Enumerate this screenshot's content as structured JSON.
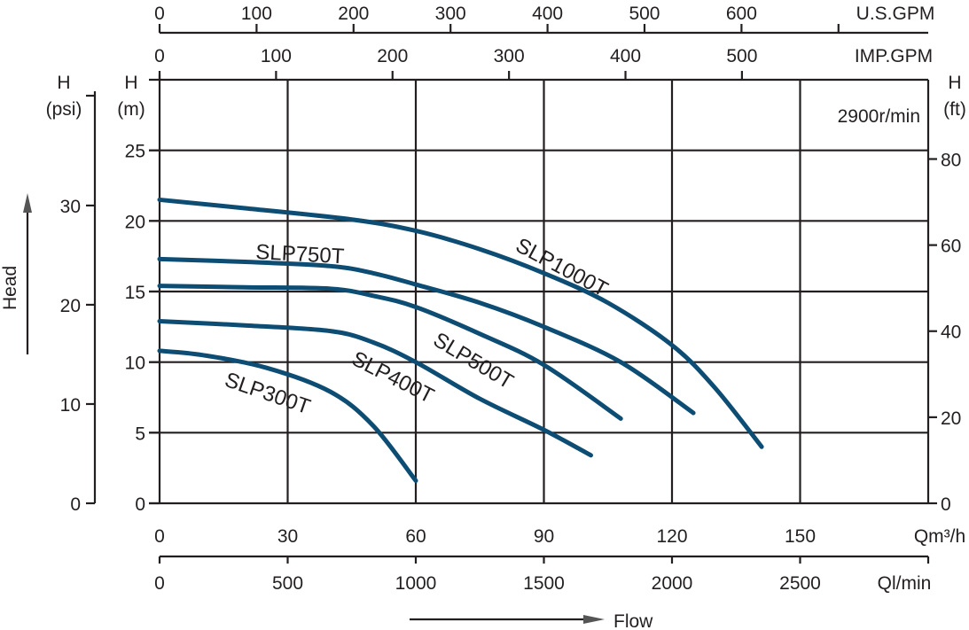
{
  "chart_data": {
    "type": "line",
    "title": "",
    "speed_note": "2900r/min",
    "x_axis": {
      "label": "Qm³/h",
      "range": [
        0,
        180
      ],
      "ticks": [
        0,
        30,
        60,
        90,
        120,
        150
      ]
    },
    "x_axis_lmin": {
      "label": "Ql/min",
      "ticks": [
        0,
        500,
        1000,
        1500,
        2000,
        2500,
        3000
      ],
      "labeled": [
        0,
        500,
        1000,
        1500,
        2000,
        2500
      ]
    },
    "x_axis_usgpm": {
      "label": "U.S.GPM",
      "ticks": [
        0,
        100,
        200,
        300,
        400,
        500,
        600,
        700
      ],
      "labeled": [
        0,
        100,
        200,
        300,
        400,
        500,
        600
      ]
    },
    "x_axis_impgpm": {
      "label": "IMP.GPM",
      "ticks": [
        0,
        100,
        200,
        300,
        400,
        500
      ],
      "labeled": [
        0,
        100,
        200,
        300,
        400,
        500
      ]
    },
    "y_axis_m": {
      "label_top": "H",
      "label_unit": "(m)",
      "range": [
        0,
        30
      ],
      "ticks": [
        0,
        5,
        10,
        15,
        20,
        25
      ]
    },
    "y_axis_psi": {
      "label_top": "H",
      "label_unit": "(psi)",
      "ticks": [
        0,
        10,
        20,
        30
      ]
    },
    "y_axis_ft": {
      "label_top": "H",
      "label_unit": "(ft)",
      "ticks": [
        0,
        20,
        40,
        60,
        80
      ]
    },
    "ylabel": "Head",
    "xlabel": "Flow",
    "grid": true,
    "curve_color": "#0d4c73",
    "series": [
      {
        "name": "SLP1000T",
        "x": [
          0,
          20,
          45,
          60,
          75,
          90,
          105,
          120,
          130,
          141
        ],
        "y": [
          21.5,
          20.9,
          20.1,
          19.3,
          18.0,
          16.3,
          14.2,
          11.2,
          8.2,
          4.0
        ]
      },
      {
        "name": "SLP750T",
        "x": [
          0,
          20,
          40,
          50,
          60,
          75,
          90,
          108,
          125
        ],
        "y": [
          17.3,
          17.1,
          16.8,
          16.3,
          15.5,
          14.2,
          12.5,
          10.0,
          6.4
        ]
      },
      {
        "name": "SLP500T",
        "x": [
          0,
          20,
          40,
          50,
          60,
          75,
          90,
          108
        ],
        "y": [
          15.4,
          15.3,
          15.2,
          14.7,
          13.9,
          12.0,
          9.8,
          6.0
        ]
      },
      {
        "name": "SLP400T",
        "x": [
          0,
          20,
          40,
          50,
          60,
          75,
          90,
          101
        ],
        "y": [
          12.9,
          12.6,
          12.2,
          11.4,
          10.0,
          7.4,
          5.2,
          3.4
        ]
      },
      {
        "name": "SLP300T",
        "x": [
          0,
          10,
          25,
          40,
          50,
          60
        ],
        "y": [
          10.8,
          10.5,
          9.6,
          7.9,
          5.5,
          1.6
        ]
      }
    ]
  }
}
